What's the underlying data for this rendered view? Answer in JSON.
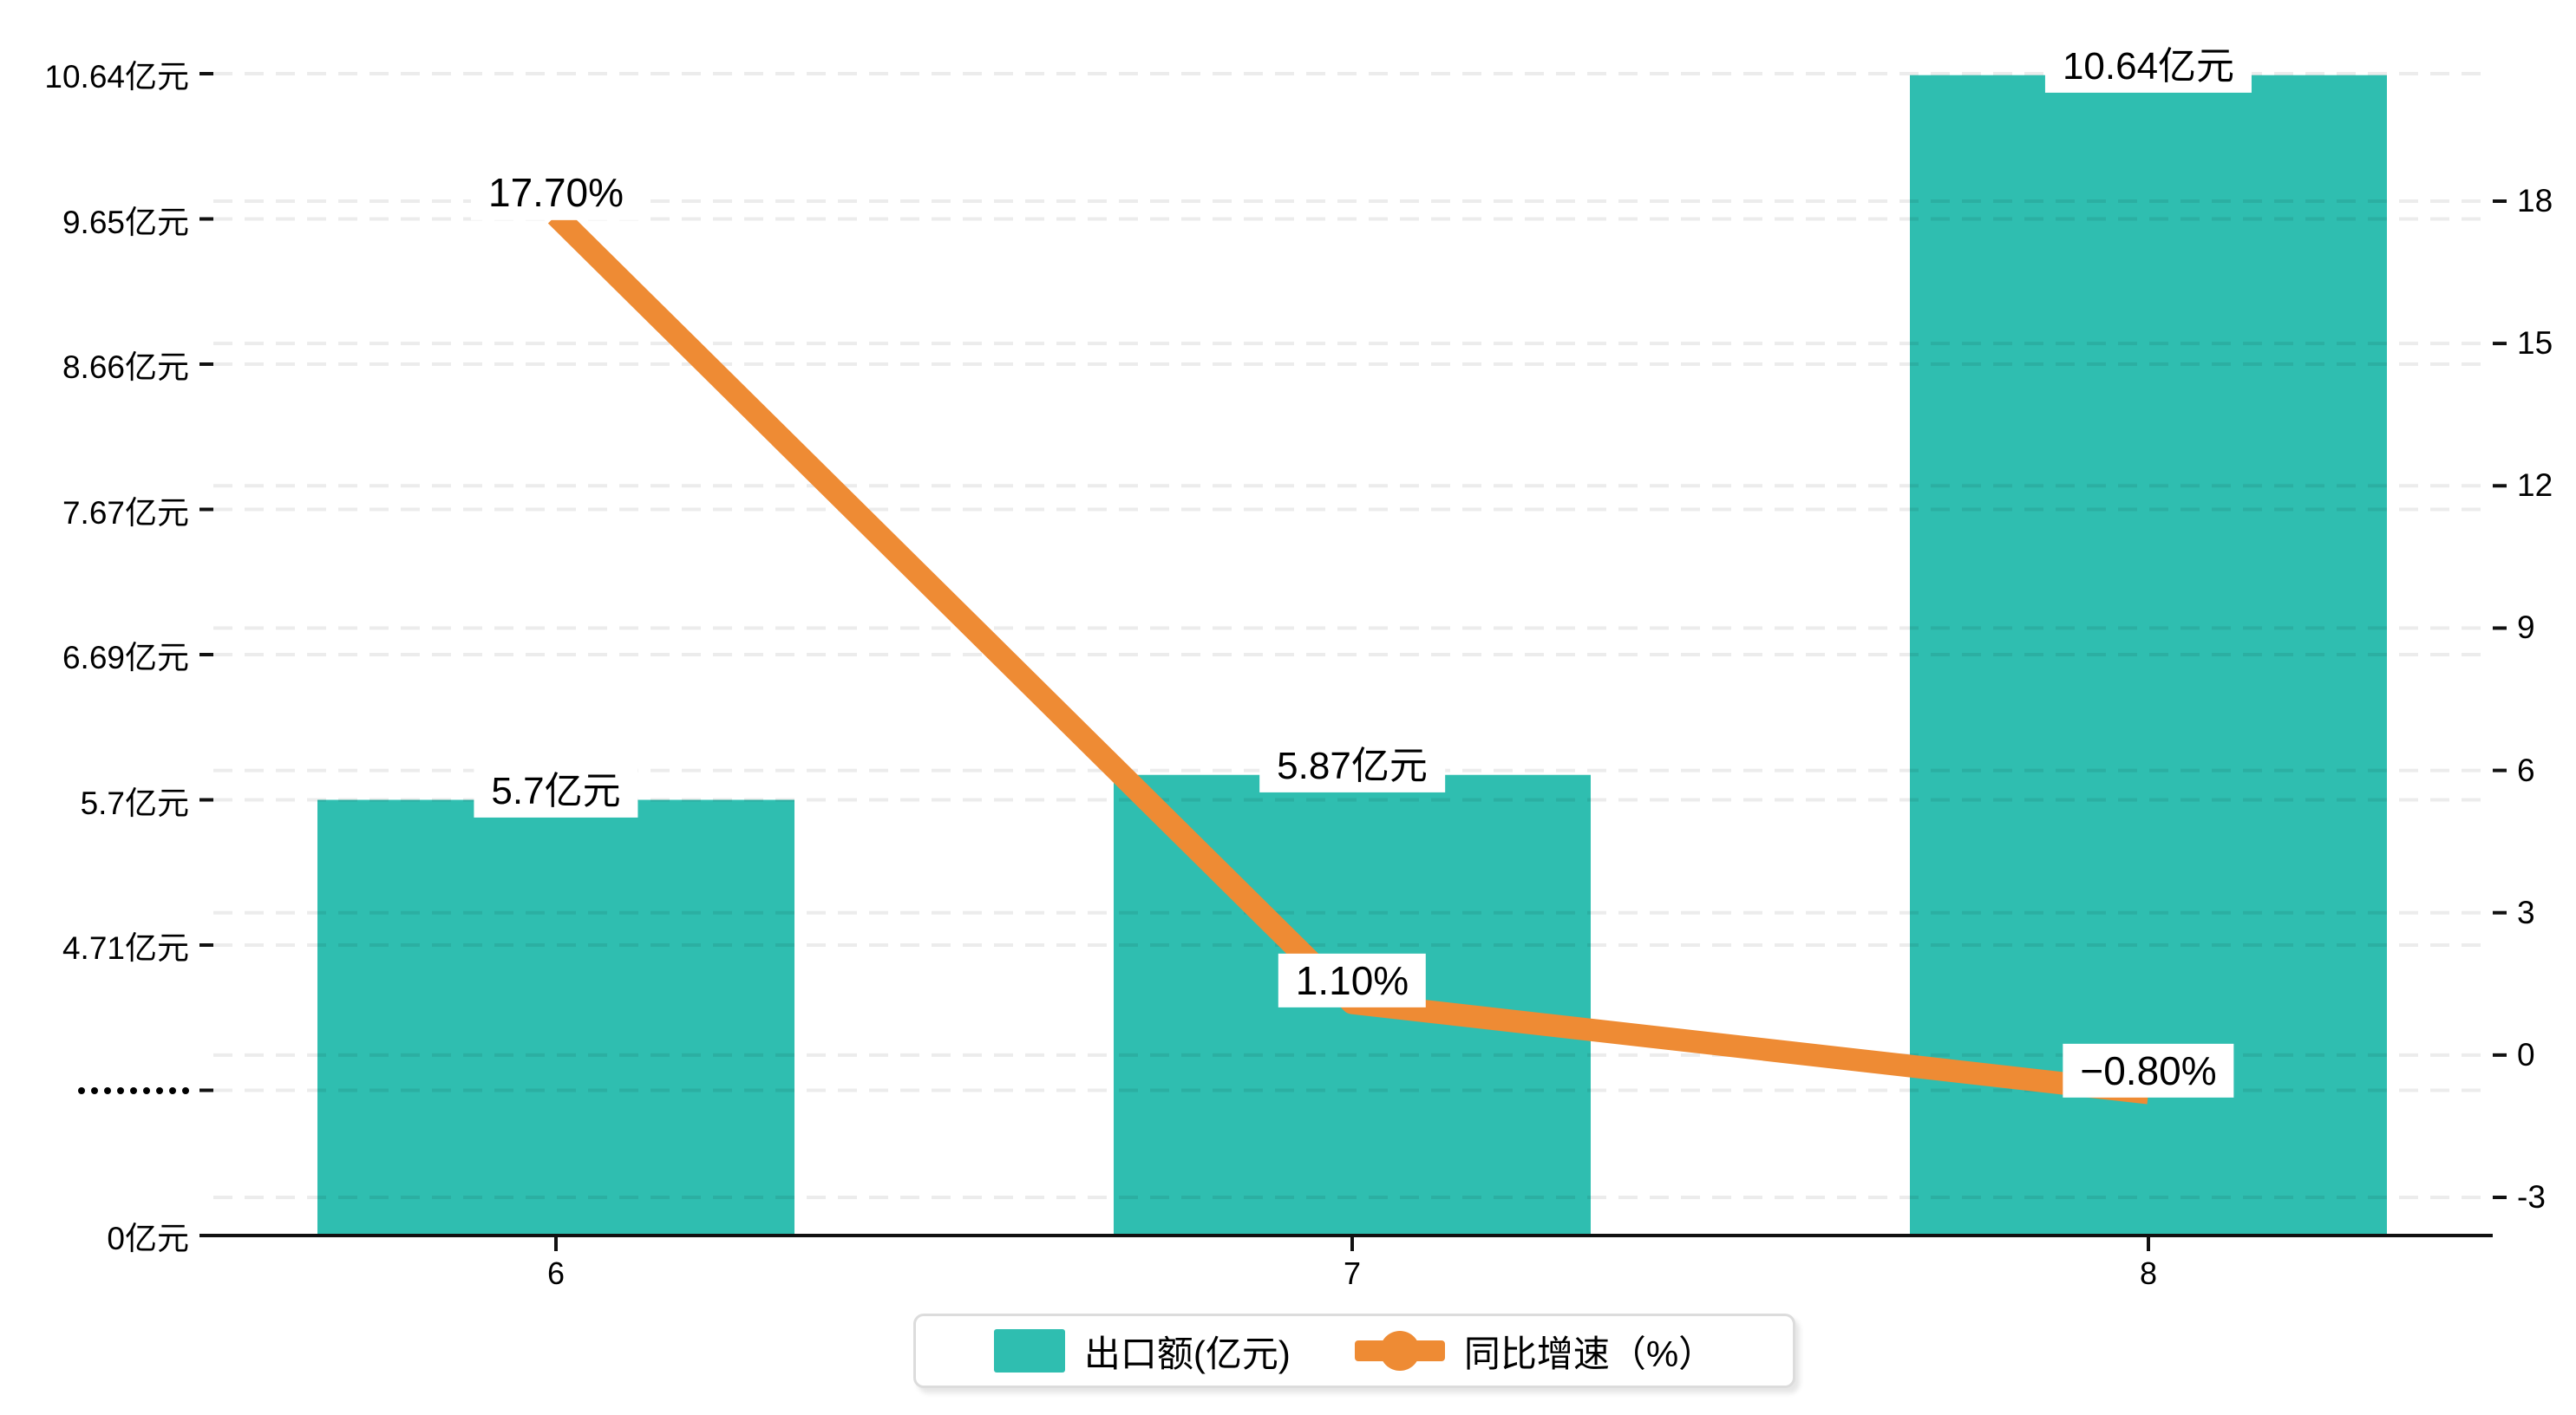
{
  "chart_data": {
    "type": "bar",
    "subtype": "combo bar+line, dual y-axis",
    "title": "",
    "categories": [
      "6",
      "7",
      "8"
    ],
    "series": [
      {
        "name": "出口额(亿元)",
        "type": "bar",
        "axis": "left",
        "color": "#2FBEB0",
        "values": [
          5.7,
          5.87,
          10.64
        ],
        "data_labels": [
          "5.7亿元",
          "5.87亿元",
          "10.64亿元"
        ]
      },
      {
        "name": "同比增速（%）",
        "type": "line",
        "axis": "right",
        "color": "#EE8B34",
        "values": [
          17.7,
          1.1,
          -0.8
        ],
        "data_labels": [
          "17.70%",
          "1.10%",
          "−0.80%"
        ]
      }
    ],
    "left_axis": {
      "unit": "亿元",
      "tick_labels": [
        "10.64亿元",
        "9.65亿元",
        "8.66亿元",
        "7.67亿元",
        "6.69亿元",
        "5.7亿元",
        "4.71亿元",
        "·········",
        "0亿元"
      ],
      "tick_values": [
        10.64,
        9.65,
        8.66,
        7.67,
        6.69,
        5.7,
        4.71,
        null,
        0
      ],
      "axis_break": "between 0 and 4.71"
    },
    "right_axis": {
      "unit": "%",
      "tick_values": [
        18,
        15,
        12,
        9,
        6,
        3,
        0,
        -3
      ],
      "min": -3,
      "max": 18
    },
    "grid": {
      "on": true,
      "style": "dashed",
      "color": "rgba(0,0,0,0.075)"
    },
    "legend": {
      "position": "bottom",
      "border_color": "#dcdcdc"
    },
    "colors": {
      "background": "#ffffff",
      "text": "#000000",
      "axis_line": "#111111"
    }
  }
}
